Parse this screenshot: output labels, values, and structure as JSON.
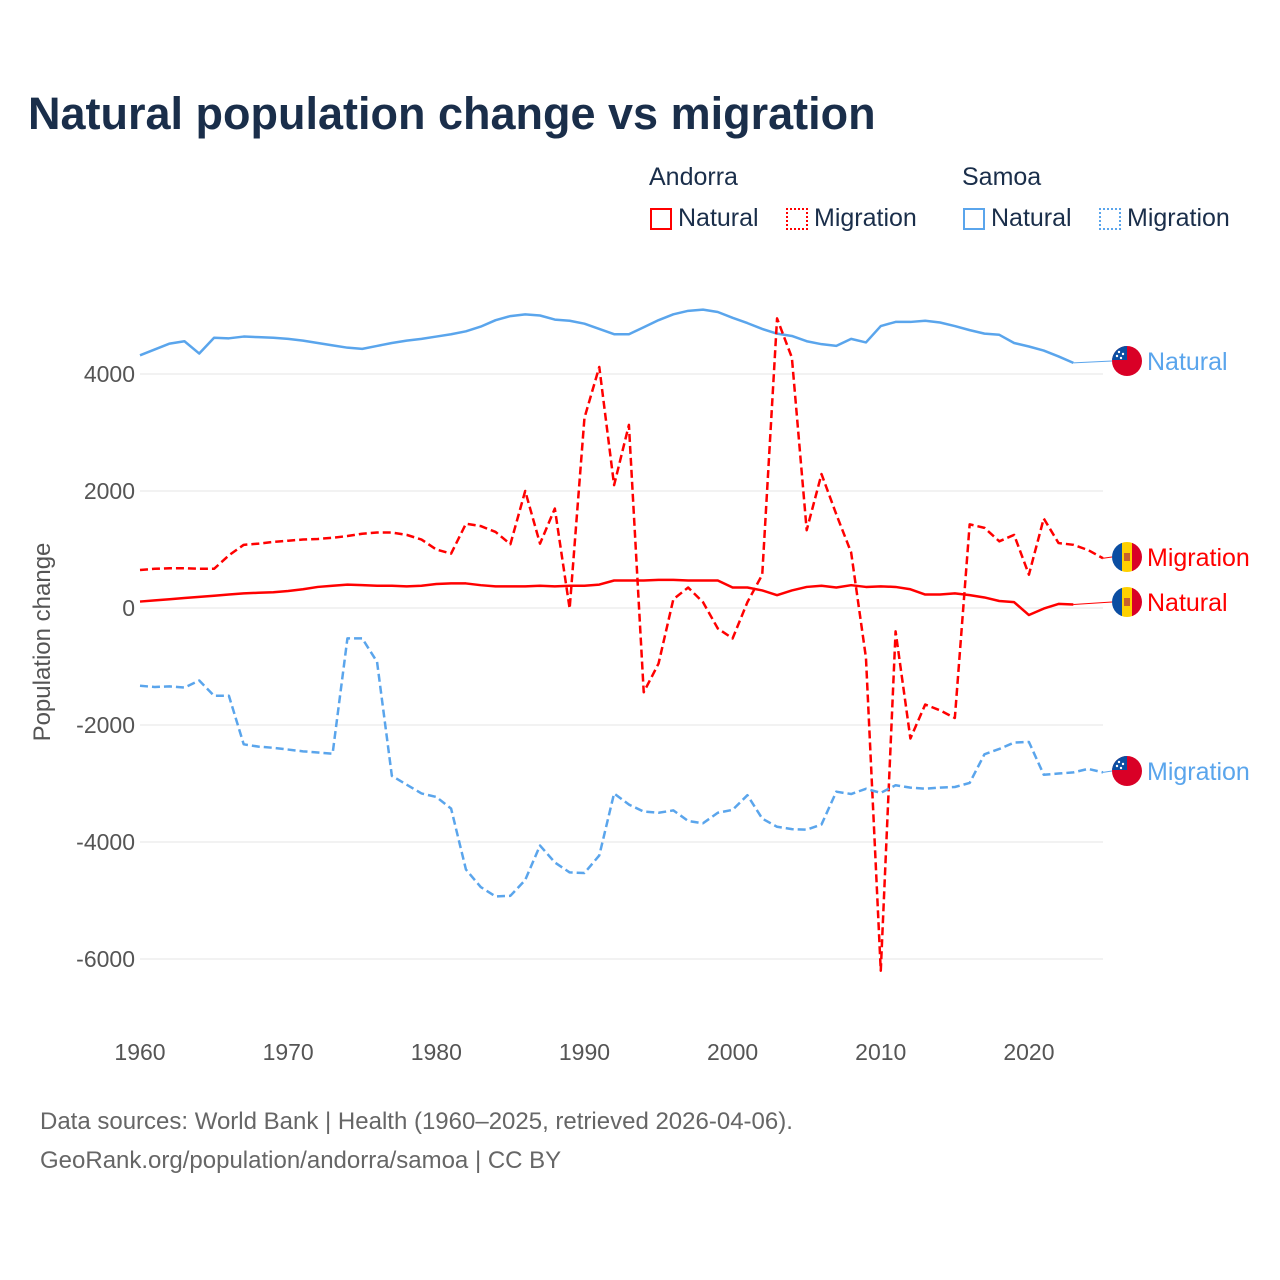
{
  "title": "Natural population change vs migration",
  "legend": {
    "groups": [
      {
        "name": "Andorra",
        "color": "#ff0000",
        "items": [
          "Natural",
          "Migration"
        ]
      },
      {
        "name": "Samoa",
        "color": "#5aa5ec",
        "items": [
          "Natural",
          "Migration"
        ]
      }
    ]
  },
  "footer": {
    "line1": "Data sources: World Bank | Health (1960–2025, retrieved 2026-04-06).",
    "line2": "GeoRank.org/population/andorra/samoa | CC BY"
  },
  "chart_data": {
    "type": "line",
    "title": "Natural population change vs migration",
    "xlabel": "",
    "ylabel": "Population change",
    "xlim": [
      1960,
      2025
    ],
    "ylim": [
      -7000,
      5500
    ],
    "xticks": [
      1960,
      1970,
      1980,
      1990,
      2000,
      2010,
      2020
    ],
    "yticks": [
      -6000,
      -4000,
      -2000,
      0,
      2000,
      4000
    ],
    "grid": true,
    "legend_position": "top-right",
    "series": [
      {
        "name": "Samoa Natural",
        "label": "Natural",
        "country": "Samoa",
        "color": "#5aa5ec",
        "dash": false,
        "start": 1960,
        "values": [
          4320,
          4420,
          4520,
          4560,
          4350,
          4620,
          4610,
          4640,
          4630,
          4620,
          4600,
          4570,
          4530,
          4490,
          4450,
          4430,
          4480,
          4530,
          4570,
          4600,
          4640,
          4680,
          4730,
          4810,
          4920,
          4990,
          5020,
          5000,
          4930,
          4910,
          4860,
          4770,
          4680,
          4680,
          4800,
          4920,
          5020,
          5080,
          5100,
          5060,
          4960,
          4870,
          4770,
          4690,
          4650,
          4560,
          4510,
          4480,
          4600,
          4540,
          4820,
          4890,
          4890,
          4910,
          4880,
          4820,
          4750,
          4690,
          4670,
          4530,
          4470,
          4400,
          4300,
          4190
        ]
      },
      {
        "name": "Andorra Migration",
        "label": "Migration",
        "country": "Andorra",
        "color": "#ff0000",
        "dash": true,
        "start": 1960,
        "values": [
          650,
          670,
          680,
          680,
          670,
          670,
          900,
          1080,
          1100,
          1130,
          1150,
          1170,
          1180,
          1200,
          1230,
          1270,
          1290,
          1290,
          1250,
          1170,
          1000,
          930,
          1440,
          1400,
          1300,
          1090,
          2000,
          1100,
          1700,
          -10,
          3250,
          4120,
          2100,
          3130,
          -1440,
          -950,
          150,
          350,
          100,
          -350,
          -520,
          100,
          570,
          4950,
          4280,
          1330,
          2290,
          1600,
          950,
          -850,
          -6200,
          -400,
          -2230,
          -1650,
          -1750,
          -1880,
          1430,
          1370,
          1140,
          1250,
          570,
          1530,
          1110,
          1080,
          990,
          850
        ]
      },
      {
        "name": "Andorra Natural",
        "label": "Natural",
        "country": "Andorra",
        "color": "#ff0000",
        "dash": false,
        "start": 1960,
        "values": [
          110,
          130,
          150,
          170,
          190,
          210,
          230,
          250,
          260,
          270,
          290,
          320,
          360,
          380,
          400,
          390,
          380,
          380,
          370,
          380,
          410,
          420,
          420,
          390,
          370,
          370,
          370,
          380,
          370,
          380,
          380,
          400,
          470,
          470,
          470,
          480,
          480,
          470,
          470,
          470,
          350,
          350,
          300,
          220,
          300,
          360,
          380,
          350,
          390,
          360,
          370,
          360,
          320,
          230,
          230,
          250,
          220,
          180,
          120,
          100,
          -120,
          -10,
          70,
          60
        ]
      },
      {
        "name": "Samoa Migration",
        "label": "Migration",
        "country": "Samoa",
        "color": "#5aa5ec",
        "dash": true,
        "start": 1960,
        "values": [
          -1330,
          -1350,
          -1340,
          -1360,
          -1240,
          -1500,
          -1500,
          -2330,
          -2370,
          -2390,
          -2420,
          -2450,
          -2470,
          -2490,
          -520,
          -520,
          -920,
          -2870,
          -3020,
          -3170,
          -3230,
          -3430,
          -4470,
          -4770,
          -4930,
          -4920,
          -4650,
          -4060,
          -4350,
          -4520,
          -4530,
          -4230,
          -3170,
          -3360,
          -3480,
          -3500,
          -3460,
          -3640,
          -3680,
          -3500,
          -3450,
          -3200,
          -3600,
          -3740,
          -3780,
          -3790,
          -3700,
          -3140,
          -3180,
          -3090,
          -3160,
          -3030,
          -3070,
          -3090,
          -3070,
          -3060,
          -2990,
          -2500,
          -2410,
          -2300,
          -2290,
          -2850,
          -2830,
          -2810,
          -2750,
          -2810
        ]
      }
    ]
  }
}
